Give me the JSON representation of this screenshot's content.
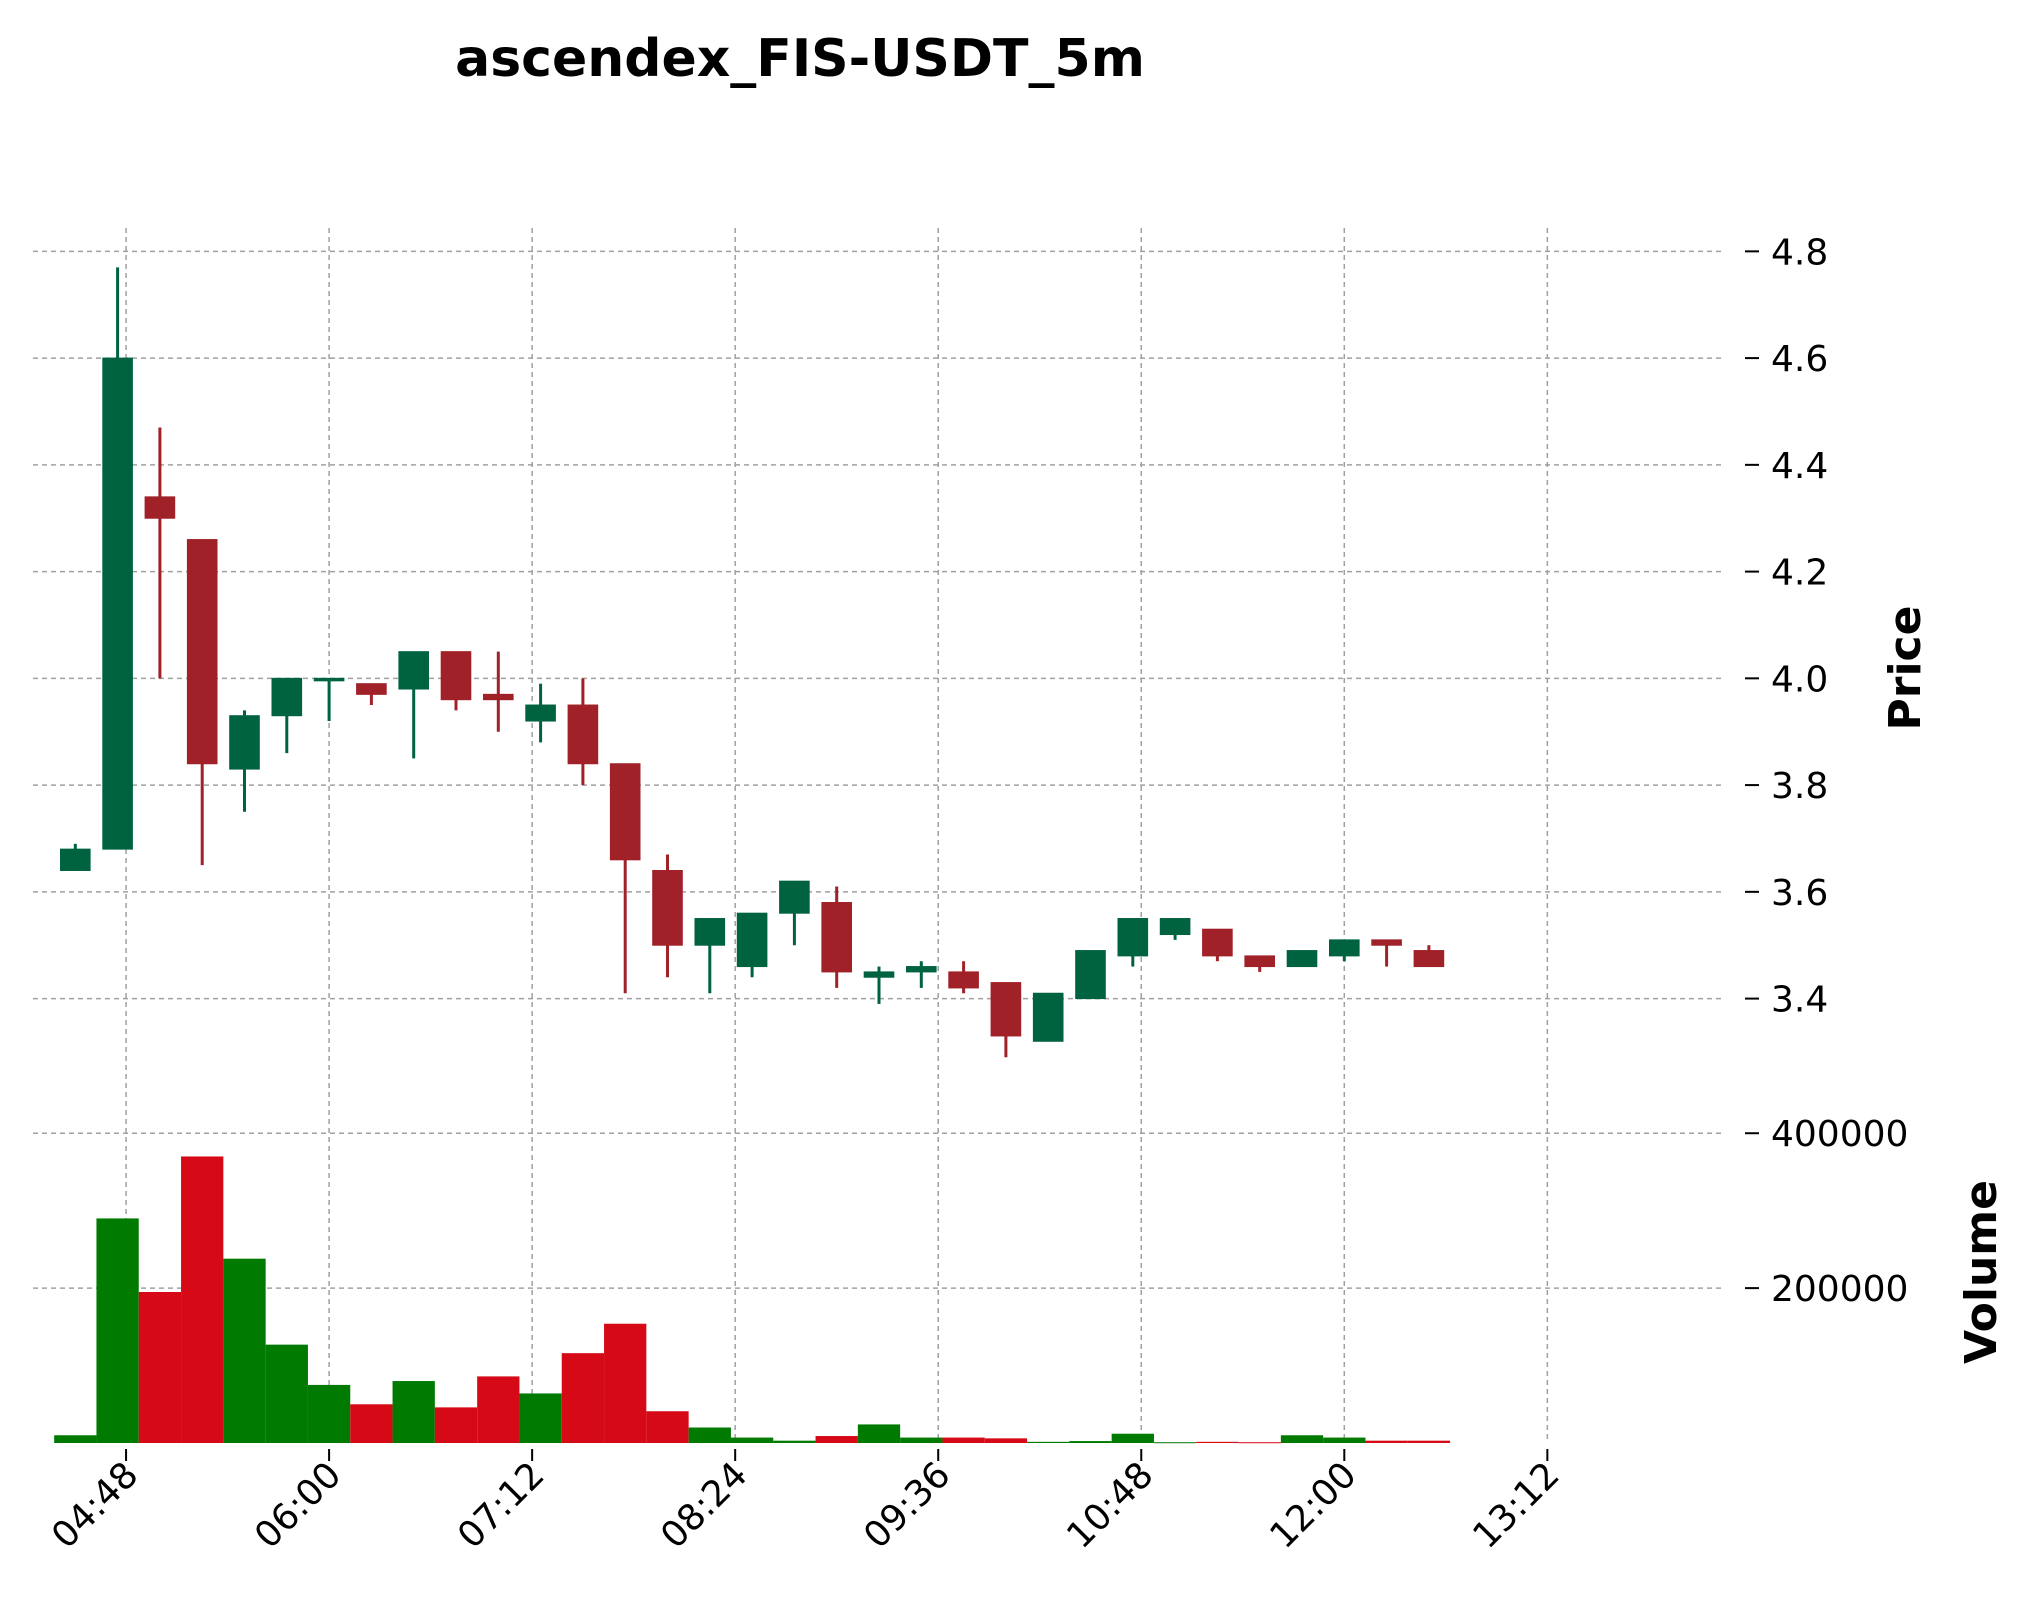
{
  "chart_data": {
    "type": "candlestick",
    "title": "ascendex_FIS-USDT_5m",
    "ylabel": "Price",
    "ylabel_lower": "Volume",
    "x_ticks": [
      "04:48",
      "06:00",
      "07:12",
      "08:24",
      "09:36",
      "10:48",
      "12:00",
      "13:12"
    ],
    "price_ticks": [
      "3.4",
      "3.6",
      "3.8",
      "4.0",
      "4.2",
      "4.4",
      "4.6",
      "4.8"
    ],
    "volume_ticks": [
      "200000",
      "400000"
    ],
    "price_ylim": [
      3.21,
      4.84
    ],
    "volume_ylim": [
      0,
      400000
    ],
    "xlim_minutes": [
      255,
      855
    ],
    "grid": true,
    "colors": {
      "up": "#006340",
      "down": "#a02128",
      "vol_up": "#007a00",
      "vol_down": "#d60a17"
    },
    "candles": [
      {
        "t": 270,
        "o": 3.64,
        "h": 3.69,
        "l": 3.64,
        "c": 3.68,
        "v": 10000
      },
      {
        "t": 285,
        "o": 3.68,
        "h": 4.77,
        "l": 3.68,
        "c": 4.6,
        "v": 290000
      },
      {
        "t": 300,
        "o": 4.34,
        "h": 4.47,
        "l": 4.0,
        "c": 4.3,
        "v": 195000
      },
      {
        "t": 315,
        "o": 4.26,
        "h": 4.26,
        "l": 3.65,
        "c": 3.84,
        "v": 370000
      },
      {
        "t": 330,
        "o": 3.83,
        "h": 3.94,
        "l": 3.75,
        "c": 3.93,
        "v": 238000
      },
      {
        "t": 345,
        "o": 3.93,
        "h": 4.0,
        "l": 3.86,
        "c": 4.0,
        "v": 127000
      },
      {
        "t": 360,
        "o": 4.0,
        "h": 4.0,
        "l": 3.92,
        "c": 4.0,
        "v": 75000
      },
      {
        "t": 375,
        "o": 3.99,
        "h": 3.99,
        "l": 3.95,
        "c": 3.97,
        "v": 50000
      },
      {
        "t": 390,
        "o": 3.98,
        "h": 4.05,
        "l": 3.85,
        "c": 4.05,
        "v": 80000
      },
      {
        "t": 405,
        "o": 4.05,
        "h": 4.05,
        "l": 3.94,
        "c": 3.96,
        "v": 46000
      },
      {
        "t": 420,
        "o": 3.97,
        "h": 4.05,
        "l": 3.9,
        "c": 3.96,
        "v": 86000
      },
      {
        "t": 435,
        "o": 3.92,
        "h": 3.99,
        "l": 3.88,
        "c": 3.95,
        "v": 64000
      },
      {
        "t": 450,
        "o": 3.95,
        "h": 4.0,
        "l": 3.8,
        "c": 3.84,
        "v": 116000
      },
      {
        "t": 465,
        "o": 3.84,
        "h": 3.84,
        "l": 3.41,
        "c": 3.66,
        "v": 154000
      },
      {
        "t": 480,
        "o": 3.64,
        "h": 3.67,
        "l": 3.44,
        "c": 3.5,
        "v": 41000
      },
      {
        "t": 495,
        "o": 3.5,
        "h": 3.55,
        "l": 3.41,
        "c": 3.55,
        "v": 20000
      },
      {
        "t": 510,
        "o": 3.46,
        "h": 3.56,
        "l": 3.44,
        "c": 3.56,
        "v": 7000
      },
      {
        "t": 525,
        "o": 3.56,
        "h": 3.62,
        "l": 3.5,
        "c": 3.62,
        "v": 3000
      },
      {
        "t": 540,
        "o": 3.58,
        "h": 3.61,
        "l": 3.42,
        "c": 3.45,
        "v": 9000
      },
      {
        "t": 555,
        "o": 3.44,
        "h": 3.46,
        "l": 3.39,
        "c": 3.45,
        "v": 24000
      },
      {
        "t": 570,
        "o": 3.45,
        "h": 3.47,
        "l": 3.42,
        "c": 3.46,
        "v": 7000
      },
      {
        "t": 585,
        "o": 3.45,
        "h": 3.47,
        "l": 3.41,
        "c": 3.42,
        "v": 7000
      },
      {
        "t": 600,
        "o": 3.43,
        "h": 3.43,
        "l": 3.29,
        "c": 3.33,
        "v": 6000
      },
      {
        "t": 615,
        "o": 3.32,
        "h": 3.41,
        "l": 3.32,
        "c": 3.41,
        "v": 1500
      },
      {
        "t": 630,
        "o": 3.4,
        "h": 3.49,
        "l": 3.4,
        "c": 3.49,
        "v": 2500
      },
      {
        "t": 645,
        "o": 3.48,
        "h": 3.55,
        "l": 3.46,
        "c": 3.55,
        "v": 12000
      },
      {
        "t": 660,
        "o": 3.52,
        "h": 3.55,
        "l": 3.51,
        "c": 3.55,
        "v": 1000
      },
      {
        "t": 675,
        "o": 3.53,
        "h": 3.53,
        "l": 3.47,
        "c": 3.48,
        "v": 1500
      },
      {
        "t": 690,
        "o": 3.48,
        "h": 3.48,
        "l": 3.45,
        "c": 3.46,
        "v": 1000
      },
      {
        "t": 705,
        "o": 3.46,
        "h": 3.49,
        "l": 3.46,
        "c": 3.49,
        "v": 10000
      },
      {
        "t": 720,
        "o": 3.48,
        "h": 3.51,
        "l": 3.47,
        "c": 3.51,
        "v": 7000
      },
      {
        "t": 735,
        "o": 3.51,
        "h": 3.51,
        "l": 3.46,
        "c": 3.5,
        "v": 3000
      },
      {
        "t": 750,
        "o": 3.49,
        "h": 3.5,
        "l": 3.46,
        "c": 3.46,
        "v": 3000
      }
    ]
  }
}
